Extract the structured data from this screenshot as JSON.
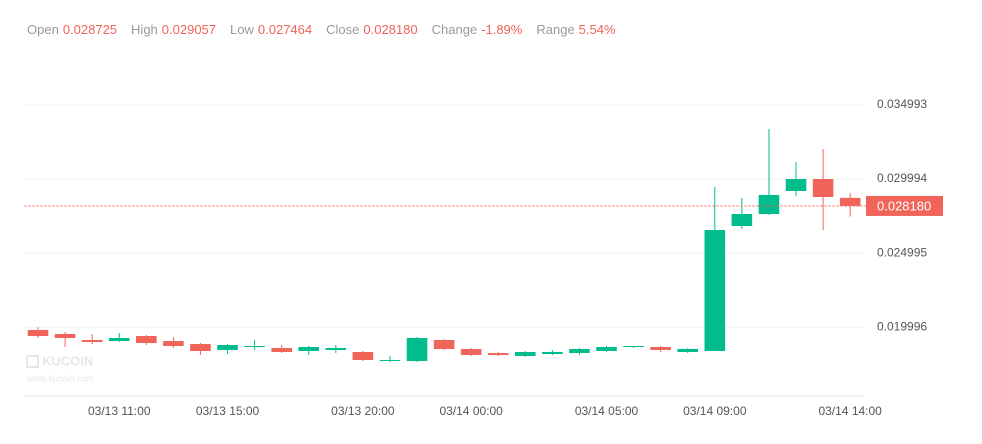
{
  "header": {
    "items": [
      {
        "label": "Open",
        "value": "0.028725"
      },
      {
        "label": "High",
        "value": "0.029057"
      },
      {
        "label": "Low",
        "value": "0.027464"
      },
      {
        "label": "Close",
        "value": "0.028180"
      },
      {
        "label": "Change",
        "value": "-1.89%"
      },
      {
        "label": "Range",
        "value": "5.54%"
      }
    ]
  },
  "watermark": {
    "brand": "KUCOIN",
    "site": "www.kucoin.com"
  },
  "chart_data": {
    "type": "candlestick",
    "categories": [
      null,
      null,
      null,
      "03/13 11:00",
      null,
      null,
      null,
      "03/13 15:00",
      null,
      null,
      null,
      null,
      "03/13 20:00",
      null,
      null,
      null,
      "03/14 00:00",
      null,
      null,
      null,
      null,
      "03/14 05:00",
      null,
      null,
      null,
      "03/14 09:00",
      null,
      null,
      null,
      null,
      "03/14 14:00"
    ],
    "open": [
      0.019806,
      0.019536,
      0.01913,
      0.019063,
      0.0194,
      0.019063,
      0.01886,
      0.018455,
      0.018658,
      0.01859,
      0.018388,
      0.018455,
      0.01832,
      0.017713,
      0.017713,
      0.01913,
      0.018523,
      0.018253,
      0.01805,
      0.018185,
      0.018253,
      0.018388,
      0.018658,
      0.018658,
      0.01832,
      0.018388,
      0.026826,
      0.027636,
      0.029188,
      0.029998,
      0.028725
    ],
    "high": [
      0.019996,
      0.019671,
      0.019536,
      0.019603,
      0.019468,
      0.019333,
      0.018928,
      0.01886,
      0.01913,
      0.018793,
      0.018725,
      0.018793,
      0.018388,
      0.01805,
      0.019333,
      0.019198,
      0.01859,
      0.01832,
      0.018388,
      0.018455,
      0.01859,
      0.018725,
      0.018725,
      0.018725,
      0.01859,
      0.029458,
      0.028716,
      0.033373,
      0.031146,
      0.032023,
      0.029057
    ],
    "low": [
      0.019265,
      0.018658,
      0.01886,
      0.018995,
      0.018793,
      0.01859,
      0.018118,
      0.018185,
      0.018455,
      0.018253,
      0.018118,
      0.018253,
      0.017713,
      0.017645,
      0.017645,
      0.018455,
      0.01805,
      0.01805,
      0.017983,
      0.018118,
      0.018118,
      0.01832,
      0.01859,
      0.01832,
      0.018253,
      0.018388,
      0.026623,
      0.027568,
      0.028851,
      0.026556,
      0.027464
    ],
    "close": [
      0.0194,
      0.019265,
      0.018995,
      0.019265,
      0.018928,
      0.018725,
      0.018388,
      0.018793,
      0.018725,
      0.01832,
      0.018658,
      0.01859,
      0.01778,
      0.01778,
      0.019265,
      0.018523,
      0.018118,
      0.018118,
      0.01832,
      0.01832,
      0.018523,
      0.018658,
      0.018725,
      0.018455,
      0.018523,
      0.026556,
      0.027636,
      0.028918,
      0.029998,
      0.028783,
      0.02818
    ],
    "up_color": "#01bc8d",
    "down_color": "#f0645a",
    "ylim": [
      0.015418,
      0.038031
    ],
    "yticks": [
      0.019996,
      0.024995,
      0.029994,
      0.034993
    ],
    "grid": true,
    "last_price": {
      "value": 0.02818,
      "label": "0.028180"
    }
  }
}
